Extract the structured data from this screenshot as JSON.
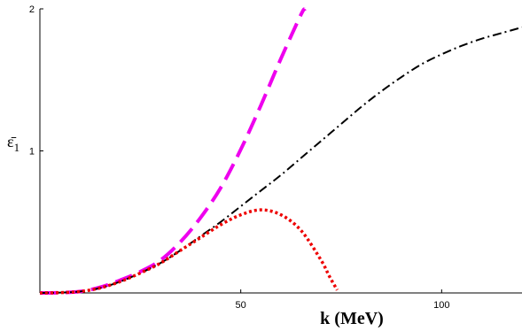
{
  "chart_data": {
    "type": "line",
    "xlabel": "k (MeV)",
    "ylabel": "ε̄",
    "ylabel_sub": "1",
    "xlim": [
      0,
      120
    ],
    "ylim": [
      0,
      2
    ],
    "x_ticks": [
      50,
      100
    ],
    "x_tick_labels": [
      "50",
      "100"
    ],
    "y_ticks": [
      1,
      2
    ],
    "y_tick_labels": [
      "1",
      "2"
    ],
    "grid": false,
    "series": [
      {
        "key": "magenta",
        "color": "#ee00ee",
        "style": "long-dash",
        "x": [
          0,
          5,
          10,
          15,
          20,
          25,
          30,
          35,
          40,
          45,
          50,
          55,
          60,
          65,
          66
        ],
        "y": [
          0,
          0.002,
          0.01,
          0.04,
          0.09,
          0.15,
          0.23,
          0.36,
          0.53,
          0.74,
          1.01,
          1.32,
          1.65,
          1.96,
          2.0
        ]
      },
      {
        "key": "black",
        "color": "#000000",
        "style": "dash-dot",
        "x": [
          0,
          5,
          10,
          15,
          20,
          25,
          30,
          35,
          40,
          45,
          50,
          55,
          60,
          65,
          70,
          75,
          80,
          85,
          90,
          95,
          100,
          105,
          110,
          115,
          120
        ],
        "y": [
          0,
          0.002,
          0.01,
          0.035,
          0.08,
          0.14,
          0.21,
          0.3,
          0.4,
          0.5,
          0.61,
          0.72,
          0.83,
          0.95,
          1.07,
          1.19,
          1.31,
          1.42,
          1.52,
          1.61,
          1.68,
          1.74,
          1.79,
          1.83,
          1.87
        ]
      },
      {
        "key": "red",
        "color": "#ee0000",
        "style": "dotted",
        "x": [
          0,
          5,
          10,
          15,
          20,
          25,
          30,
          35,
          40,
          45,
          50,
          55,
          60,
          65,
          70,
          72,
          74
        ],
        "y": [
          0,
          0.002,
          0.01,
          0.035,
          0.08,
          0.14,
          0.21,
          0.3,
          0.39,
          0.48,
          0.55,
          0.585,
          0.55,
          0.44,
          0.23,
          0.12,
          0.02
        ]
      }
    ]
  }
}
